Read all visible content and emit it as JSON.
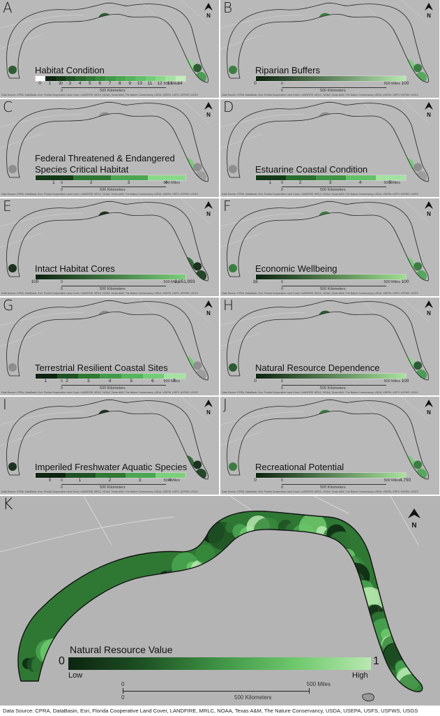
{
  "source_small": "Data Source: CPRA, DataBasin, Esri, Florida Cooperative Land Cover, LANDFIRE, MRLC, NOAA, Texas A&M, The Nature Conservancy, USDA, USEPA, USFS, USFWS, USGS",
  "source_large": "Data Source: CPRA, DataBasin, Esri, Florida Cooperative Land Cover, LANDFIRE, MRLC, NOAA, Texas A&M, The Nature Conservancy, USDA, USEPA, USFS, USFWS, USGS",
  "north_label": "N",
  "scale": {
    "zero": "0",
    "miles": "500 Miles",
    "km": "500 Kilometers"
  },
  "panels": [
    {
      "letter": "A",
      "title": "Habitat Condition",
      "fill": "mixed",
      "ticks": [
        "0",
        "1",
        "2",
        "3",
        "4",
        "5",
        "6",
        "7",
        "8",
        "9",
        "10",
        "11",
        "12",
        "13",
        "14"
      ],
      "colors": [
        "#ffffff",
        "#0c2410",
        "#143a18",
        "#1e5224",
        "#27662c",
        "#2f7834",
        "#378a3c",
        "#40994a",
        "#4aa652",
        "#55b45c",
        "#62c068",
        "#74cc76",
        "#8ad88a",
        "#a4e2a2",
        "#c2ecba"
      ]
    },
    {
      "letter": "B",
      "title": "Riparian Buffers",
      "fill": "green",
      "ticks": [
        "0",
        "100"
      ],
      "gradient": [
        "#0c2410",
        "#b8e8b0"
      ]
    },
    {
      "letter": "C",
      "title_line1": "Federal Threatened & Endangered",
      "title": "Species Critical Habitat",
      "fill": "sparse",
      "ticks": [
        "1",
        "2",
        "3",
        "4"
      ],
      "colors": [
        "#143a18",
        "#2f7834",
        "#4aa652",
        "#8ad88a"
      ]
    },
    {
      "letter": "D",
      "title": "Estuarine Coastal Condition",
      "fill": "sparse",
      "ticks": [
        "1",
        "2",
        "3",
        "4",
        "5"
      ],
      "colors": [
        "#143a18",
        "#2a6e30",
        "#3f9446",
        "#62c068",
        "#a4e2a2"
      ]
    },
    {
      "letter": "E",
      "title": "Intact Habitat Cores",
      "fill": "dark",
      "ticks": [
        "100",
        "2,051,993"
      ],
      "gradient": [
        "#0c2410",
        "#7bd07a"
      ]
    },
    {
      "letter": "F",
      "title": "Economic Wellbeing",
      "fill": "green",
      "ticks": [
        "18",
        "100"
      ],
      "gradient": [
        "#0c2410",
        "#9fe090"
      ]
    },
    {
      "letter": "G",
      "title": "Terrestrial Resilient Coastal Sites",
      "fill": "sparse",
      "ticks": [
        "1",
        "2",
        "3",
        "4",
        "5",
        "6",
        "7"
      ],
      "colors": [
        "#0c2410",
        "#1e5224",
        "#2f7834",
        "#40994a",
        "#55b45c",
        "#74cc76",
        "#a4e2a2"
      ]
    },
    {
      "letter": "H",
      "title": "Natural Resource Dependence",
      "fill": "mixed",
      "ticks": [
        "0",
        "100"
      ],
      "gradient": [
        "#0c2410",
        "#a8e39c"
      ]
    },
    {
      "letter": "I",
      "title": "Imperiled Freshwater Aquatic Species",
      "fill": "dark",
      "ticks": [
        "0",
        "1",
        "2",
        "3",
        "4"
      ],
      "colors": [
        "#0c2410",
        "#1e5224",
        "#2f7834",
        "#4aa652",
        "#7bd07a"
      ]
    },
    {
      "letter": "J",
      "title": "Recreational Potential",
      "fill": "green",
      "ticks": [
        "0",
        "4,750"
      ],
      "gradient": [
        "#0c2410",
        "#a8e39c"
      ]
    }
  ],
  "main": {
    "letter": "K",
    "title": "Natural Resource Value",
    "low_value": "0",
    "high_value": "1",
    "low_label": "Low",
    "high_label": "High",
    "gradient": [
      "#0c2410",
      "#1e5224",
      "#3f9446",
      "#6ec86c",
      "#b8e8b0"
    ]
  }
}
